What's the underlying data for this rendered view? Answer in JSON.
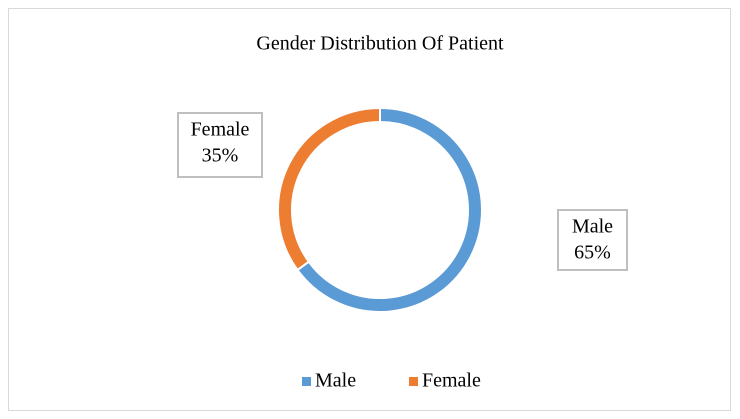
{
  "chart_data": {
    "type": "donut",
    "title": "Gender Distribution Of Patient",
    "categories": [
      "Male",
      "Female"
    ],
    "values": [
      65,
      35
    ],
    "value_labels": [
      "65%",
      "35%"
    ],
    "colors": [
      "#5b9bd5",
      "#ed7d31"
    ],
    "legend": "bottom"
  }
}
